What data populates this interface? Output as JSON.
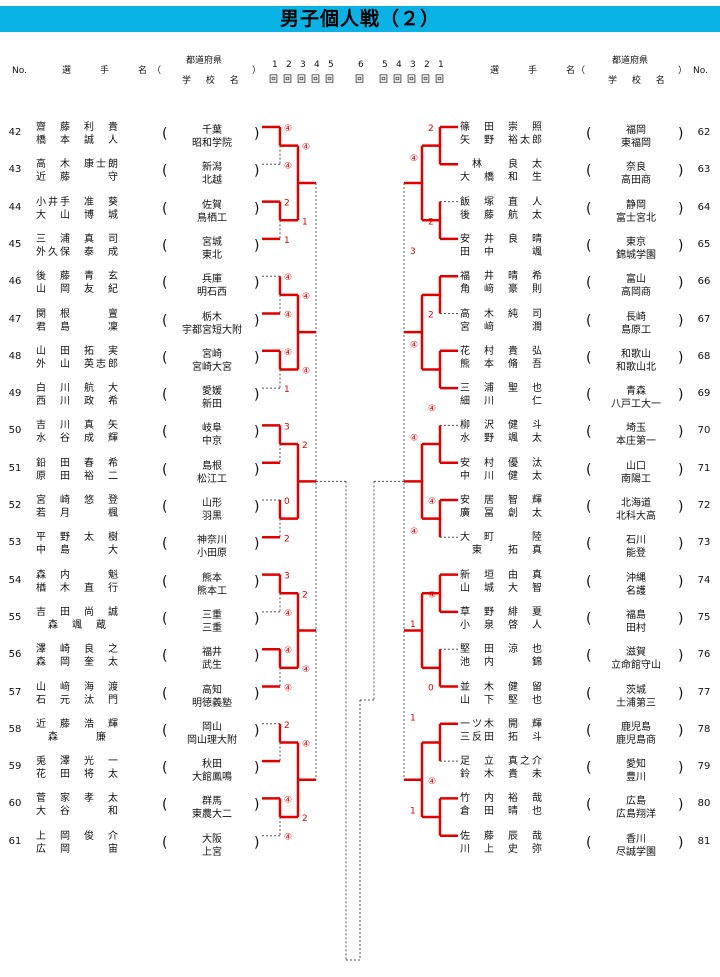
{
  "title": "男子個人戦（２）",
  "header": {
    "no_left": "No.",
    "no_right": "No.",
    "name_label": "選　手　名",
    "paren_open": "（",
    "paren_close": "）",
    "pref_label": "都道府県",
    "school_label": "学 校 名",
    "rounds_left": [
      "1",
      "2",
      "3",
      "4",
      "5",
      "6"
    ],
    "rounds_right": [
      "5",
      "4",
      "3",
      "2",
      "1"
    ],
    "round_box": "回"
  },
  "left_entries": [
    {
      "no": "42",
      "p1": "齋　藤　利　貴",
      "p2": "橋　本　誠　人",
      "pref": "千葉",
      "school": "昭和学院"
    },
    {
      "no": "43",
      "p1": "高　木　康士朗",
      "p2": "近　藤　　　守",
      "pref": "新潟",
      "school": "北越"
    },
    {
      "no": "44",
      "p1": "小井手　准　葵",
      "p2": "大　山　博　城",
      "pref": "佐賀",
      "school": "鳥栖工"
    },
    {
      "no": "45",
      "p1": "三　浦　真　司",
      "p2": "外久保　泰　成",
      "pref": "宮城",
      "school": "東北"
    },
    {
      "no": "46",
      "p1": "後　藤　青　玄",
      "p2": "山　岡　友　紀",
      "pref": "兵庫",
      "school": "明石西"
    },
    {
      "no": "47",
      "p1": "関　根　　　亶",
      "p2": "君　島　　　凜",
      "pref": "栃木",
      "school": "宇都宮短大附"
    },
    {
      "no": "48",
      "p1": "山　田　拓　実",
      "p2": "外　山　英志郎",
      "pref": "宮崎",
      "school": "宮崎大宮"
    },
    {
      "no": "49",
      "p1": "白　川　航　大",
      "p2": "西　川　政　希",
      "pref": "愛媛",
      "school": "新田"
    },
    {
      "no": "50",
      "p1": "吉　川　真　矢",
      "p2": "水　谷　成　輝",
      "pref": "岐阜",
      "school": "中京"
    },
    {
      "no": "51",
      "p1": "鉛　田　春　希",
      "p2": "原　田　裕　二",
      "pref": "島根",
      "school": "松江工"
    },
    {
      "no": "52",
      "p1": "宮　崎　悠　登",
      "p2": "若　月　　　楓",
      "pref": "山形",
      "school": "羽黒"
    },
    {
      "no": "53",
      "p1": "平　野　太　樹",
      "p2": "中　島　　　大",
      "pref": "神奈川",
      "school": "小田原"
    },
    {
      "no": "54",
      "p1": "森　内　　　魁",
      "p2": "楢　木　直　行",
      "pref": "熊本",
      "school": "熊本工"
    },
    {
      "no": "55",
      "p1": "吉　田　尚　誠",
      "p2": "　森　颯　蔵",
      "pref": "三重",
      "school": "三重"
    },
    {
      "no": "56",
      "p1": "澤　崎　良　之",
      "p2": "森　岡　奎　太",
      "pref": "福井",
      "school": "武生"
    },
    {
      "no": "57",
      "p1": "山　﨑　海　渡",
      "p2": "石　元　汰　門",
      "pref": "高知",
      "school": "明徳義塾"
    },
    {
      "no": "58",
      "p1": "近　藤　浩　輝",
      "p2": "　森　　　廉",
      "pref": "岡山",
      "school": "岡山理大附"
    },
    {
      "no": "59",
      "p1": "兎　澤　光　一",
      "p2": "花　田　将　太",
      "pref": "秋田",
      "school": "大館鳳鳴"
    },
    {
      "no": "60",
      "p1": "菅　家　孝　太",
      "p2": "大　谷　　　和",
      "pref": "群馬",
      "school": "東農大二"
    },
    {
      "no": "61",
      "p1": "上　岡　俊　介",
      "p2": "広　岡　　　宙",
      "pref": "大阪",
      "school": "上宮"
    }
  ],
  "right_entries": [
    {
      "no": "62",
      "p1": "篠　田　崇　照",
      "p2": "矢　野　裕太郎",
      "pref": "福岡",
      "school": "東福岡"
    },
    {
      "no": "63",
      "p1": "　林　　良　太",
      "p2": "大　橋　和　生",
      "pref": "奈良",
      "school": "高田商"
    },
    {
      "no": "64",
      "p1": "飯　塚　直　人",
      "p2": "後　藤　航　太",
      "pref": "静岡",
      "school": "富士宮北"
    },
    {
      "no": "65",
      "p1": "安　井　良　晴",
      "p2": "田　中　　　颯",
      "pref": "東京",
      "school": "錦城学園"
    },
    {
      "no": "66",
      "p1": "福　井　晴　希",
      "p2": "角　﨑　豪　則",
      "pref": "富山",
      "school": "高岡商"
    },
    {
      "no": "67",
      "p1": "高　木　純　司",
      "p2": "宮　﨑　　　潤",
      "pref": "長崎",
      "school": "島原工"
    },
    {
      "no": "68",
      "p1": "花　村　貴　弘",
      "p2": "熊　本　脩　吾",
      "pref": "和歌山",
      "school": "和歌山北"
    },
    {
      "no": "69",
      "p1": "三　浦　聖　也",
      "p2": "細　川　　　仁",
      "pref": "青森",
      "school": "八戸工大一"
    },
    {
      "no": "70",
      "p1": "柳　沢　健　斗",
      "p2": "水　野　颯　太",
      "pref": "埼玉",
      "school": "本庄第一"
    },
    {
      "no": "71",
      "p1": "安　村　優　汰",
      "p2": "中　川　健　太",
      "pref": "山口",
      "school": "南陽工"
    },
    {
      "no": "72",
      "p1": "安　居　智　輝",
      "p2": "廣　冨　創　太",
      "pref": "北海道",
      "school": "北科大高"
    },
    {
      "no": "73",
      "p1": "大　町　　　陸",
      "p2": "　東　　拓　真",
      "pref": "石川",
      "school": "能登"
    },
    {
      "no": "74",
      "p1": "新　垣　由　真",
      "p2": "山　城　大　智",
      "pref": "沖縄",
      "school": "名護"
    },
    {
      "no": "75",
      "p1": "草　野　緋　夏",
      "p2": "小　泉　啓　人",
      "pref": "福島",
      "school": "田村"
    },
    {
      "no": "76",
      "p1": "堅　田　涼　也",
      "p2": "池　内　　　錦",
      "pref": "滋賀",
      "school": "立命館守山"
    },
    {
      "no": "77",
      "p1": "並　木　健　留",
      "p2": "山　下　堅　也",
      "pref": "茨城",
      "school": "土浦第三"
    },
    {
      "no": "78",
      "p1": "一ツ木　開　輝",
      "p2": "三反田　拓　斗",
      "pref": "鹿児島",
      "school": "鹿児島商"
    },
    {
      "no": "79",
      "p1": "足　立　真之介",
      "p2": "鈴　木　貴　未",
      "pref": "愛知",
      "school": "豊川"
    },
    {
      "no": "80",
      "p1": "竹　内　裕　哉",
      "p2": "倉　田　晴　也",
      "pref": "広島",
      "school": "広島翔洋"
    },
    {
      "no": "81",
      "p1": "佐　藤　辰　哉",
      "p2": "川　上　史　弥",
      "pref": "香川",
      "school": "尽誠学園"
    }
  ],
  "scores_left": [
    [
      "④",
      "④",
      "",
      "",
      ""
    ],
    [
      "2",
      "1",
      "④",
      "",
      ""
    ],
    [
      "④",
      "④",
      "",
      "",
      ""
    ],
    [
      "④",
      "1",
      "",
      "",
      ""
    ],
    [
      "3",
      "",
      "",
      "",
      ""
    ],
    [
      "0",
      "2",
      "④",
      "",
      ""
    ],
    [
      "3",
      "④",
      "",
      "",
      ""
    ],
    [
      "④",
      "④",
      "④",
      "",
      ""
    ],
    [
      "2",
      "",
      "",
      "",
      ""
    ],
    [
      "④",
      "④",
      "④",
      "",
      ""
    ],
    [
      "④",
      "1",
      "3",
      "",
      ""
    ],
    [
      "④",
      "④",
      "1",
      "",
      ""
    ],
    [
      "2",
      "",
      "",
      "",
      ""
    ],
    [
      "2",
      "④",
      "3",
      "",
      ""
    ],
    [
      "④",
      "2",
      "",
      "",
      ""
    ],
    [
      "④",
      "④",
      "④",
      "",
      ""
    ]
  ],
  "scores_right": [
    [
      "2",
      "④",
      "④",
      "④",
      "2"
    ],
    [
      "2",
      "3",
      "④",
      "2",
      ""
    ],
    [
      "2",
      "④",
      "④",
      "3",
      "1"
    ],
    [
      "④",
      "④",
      "④",
      "④",
      ""
    ],
    [
      "④",
      "④",
      "0",
      "④",
      "3"
    ],
    [
      "④",
      "1",
      "④",
      "2",
      ""
    ],
    [
      "0",
      "1",
      "④",
      "④",
      "④"
    ],
    [
      "④",
      "1",
      "④",
      "④",
      ""
    ]
  ],
  "colors": {
    "title_bar": "#0ab3e6",
    "win_line": "#e00000",
    "score": "#e00000",
    "lose_line": "#555555"
  }
}
